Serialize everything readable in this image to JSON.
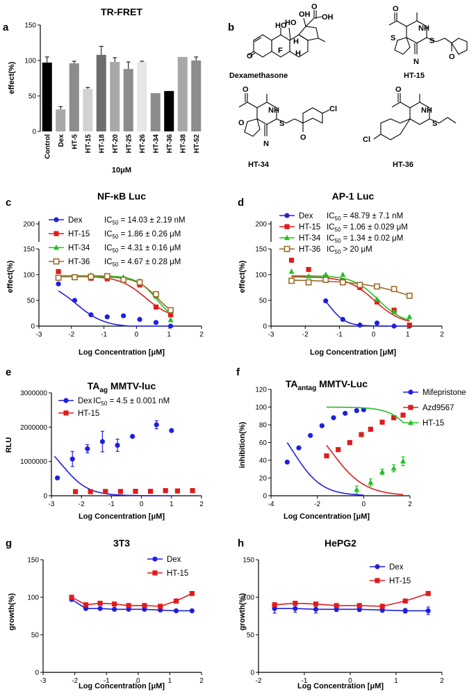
{
  "colors": {
    "blue": "#1f1fe0",
    "red": "#e01b1b",
    "green": "#22c022",
    "brown": "#9c6a2a"
  },
  "panels": {
    "a": {
      "letter": "a",
      "title": "TR-FRET",
      "xlabel": "10μM",
      "ylabel": "effect(%)",
      "yticks": [
        "0",
        "50",
        "100",
        "150"
      ]
    },
    "b": {
      "letter": "b",
      "compounds": [
        {
          "name": "Dexamethasone"
        },
        {
          "name": "HT-15"
        },
        {
          "name": "HT-34"
        },
        {
          "name": "HT-36"
        }
      ],
      "atoms": {
        "O": "O",
        "OH": "OH",
        "HO": "HO",
        "F": "F",
        "H": "H",
        "NH": "NH",
        "S": "S",
        "N": "N",
        "Cl": "Cl"
      }
    },
    "c": {
      "letter": "c",
      "title": "NF-κB Luc",
      "ylabel": "effect(%)",
      "xlabel": "Log Concentration [μM]",
      "yticks": [
        "0",
        "50",
        "100",
        "150",
        "200"
      ],
      "xticks": [
        "-3",
        "-2",
        "-1",
        "0",
        "1",
        "2"
      ],
      "legend": [
        {
          "name": "Dex",
          "ic": "IC",
          "sub": "50",
          "val": " = 14.03 ± 2.19 nM"
        },
        {
          "name": "HT-15",
          "ic": "IC",
          "sub": "50",
          "val": " = 1.86 ± 0.26 μM"
        },
        {
          "name": "HT-34",
          "ic": "IC",
          "sub": "50",
          "val": " = 4.31 ± 0.16 μM"
        },
        {
          "name": "HT-36",
          "ic": "IC",
          "sub": "50",
          "val": " = 4.67 ± 0.28 μM"
        }
      ]
    },
    "d": {
      "letter": "d",
      "title": "AP-1 Luc",
      "ylabel": "effect(%)",
      "xlabel": "Log Concentration [μM]",
      "yticks": [
        "0",
        "50",
        "100",
        "150",
        "200"
      ],
      "xticks": [
        "-3",
        "-2",
        "-1",
        "0",
        "1",
        "2"
      ],
      "legend": [
        {
          "name": "Dex",
          "ic": "IC",
          "sub": "50",
          "val": " = 48.79 ± 7.1 nM"
        },
        {
          "name": "HT-15",
          "ic": "IC",
          "sub": "50",
          "val": " = 1.06 ± 0.029 μM"
        },
        {
          "name": "HT-34",
          "ic": "IC",
          "sub": "50",
          "val": " = 1.34 ± 0.02 μM"
        },
        {
          "name": "HT-36",
          "ic": "IC",
          "sub": "50",
          "val": " > 20 μM"
        }
      ]
    },
    "e": {
      "letter": "e",
      "title_main": "TA",
      "title_sub": "ag",
      "title_rest": " MMTV-luc",
      "ylabel": "RLU",
      "xlabel": "Log Concentration [μM]",
      "yticks": [
        "0",
        "1000000",
        "2000000",
        "3000000"
      ],
      "xticks": [
        "-3",
        "-2",
        "-1",
        "0",
        "1",
        "2"
      ],
      "legend": [
        {
          "name": "Dex",
          "ic": "IC",
          "sub": "50",
          "val": " = 4.5 ± 0.001 nM"
        },
        {
          "name": "HT-15",
          "ic": "",
          "sub": "",
          "val": ""
        }
      ]
    },
    "f": {
      "letter": "f",
      "title_main": "TA",
      "title_sub": "antag",
      "title_rest": " MMTV-Luc",
      "ylabel": "inhibition(%)",
      "xlabel": "Log Concentration [μM]",
      "yticks": [
        "0",
        "20",
        "40",
        "60",
        "80",
        "100",
        "120"
      ],
      "xticks": [
        "-4",
        "-2",
        "0",
        "2"
      ],
      "legend": [
        {
          "name": "Mifepristone"
        },
        {
          "name": "Azd9567"
        },
        {
          "name": "HT-15"
        }
      ]
    },
    "g": {
      "letter": "g",
      "title": "3T3",
      "ylabel": "growth(%)",
      "xlabel": "Log Concentration [μM]",
      "yticks": [
        "0",
        "50",
        "100",
        "150"
      ],
      "xticks": [
        "-3",
        "-2",
        "-1",
        "0",
        "1",
        "2"
      ],
      "legend": [
        {
          "name": "Dex"
        },
        {
          "name": "HT-15"
        }
      ]
    },
    "h": {
      "letter": "h",
      "title": "HePG2",
      "ylabel": "growth(%)",
      "xlabel": "Log Concentration [μM]",
      "yticks": [
        "0",
        "50",
        "100",
        "150"
      ],
      "xticks": [
        "-2",
        "-1",
        "0",
        "1",
        "2"
      ],
      "legend": [
        {
          "name": "Dex"
        },
        {
          "name": "HT-15"
        }
      ]
    }
  },
  "chart_data": [
    {
      "panel": "a",
      "type": "bar",
      "title": "TR-FRET",
      "xlabel": "10μM",
      "ylabel": "effect(%)",
      "ylim": [
        0,
        150
      ],
      "categories": [
        "Control",
        "Dex",
        "HT-5",
        "HT-15",
        "HT-18",
        "HT-20",
        "HT-25",
        "HT-26",
        "HT-34",
        "HT-36",
        "HT-38",
        "HT-52"
      ],
      "values": [
        97,
        31,
        96,
        60,
        108,
        98,
        88,
        98,
        54,
        57,
        105,
        100
      ],
      "errors": [
        8,
        4,
        3,
        2,
        12,
        6,
        10,
        1,
        0,
        0,
        0,
        5
      ],
      "bar_colors": [
        "#000000",
        "#a8a8a8",
        "#8c8c8c",
        "#d2d2d2",
        "#6e6e6e",
        "#a8a8a8",
        "#8c8c8c",
        "#e6e6e6",
        "#8c8c8c",
        "#000000",
        "#a8a8a8",
        "#8c8c8c"
      ]
    },
    {
      "panel": "c",
      "type": "scatter",
      "title": "NF-κB Luc",
      "xlabel": "Log Concentration [μM]",
      "ylabel": "effect(%)",
      "xlim": [
        -3,
        2
      ],
      "ylim": [
        0,
        200
      ],
      "y_axis_break": [
        150,
        180
      ],
      "series": [
        {
          "name": "Dex",
          "color": "#1f1fe0",
          "marker": "circle",
          "x": [
            -2.4,
            -1.9,
            -1.4,
            -0.9,
            -0.4,
            0.1,
            0.6,
            1.05
          ],
          "y": [
            82,
            50,
            22,
            18,
            20,
            13,
            7,
            0
          ],
          "fit": {
            "top": 88,
            "bottom": -2,
            "logic50": -1.85,
            "hill": 1
          }
        },
        {
          "name": "HT-15",
          "color": "#e01b1b",
          "marker": "square",
          "x": [
            -2.4,
            -1.9,
            -1.4,
            -0.9,
            -0.4,
            0.1,
            0.6,
            1.05
          ],
          "y": [
            106,
            95,
            93,
            92,
            90,
            80,
            37,
            22
          ],
          "fit": {
            "top": 97,
            "bottom": 14,
            "logic50": 0.27,
            "hill": 1.1
          }
        },
        {
          "name": "HT-34",
          "color": "#22c022",
          "marker": "triangle",
          "x": [
            -2.4,
            -1.9,
            -1.4,
            -0.9,
            -0.4,
            0.1,
            0.6,
            1.05
          ],
          "y": [
            94,
            95,
            99,
            98,
            95,
            88,
            58,
            12
          ],
          "fit": {
            "top": 98,
            "bottom": 5,
            "logic50": 0.63,
            "hill": 1.4
          }
        },
        {
          "name": "HT-36",
          "color": "#9c6a2a",
          "marker": "open-square",
          "x": [
            -2.4,
            -1.9,
            -1.4,
            -0.9,
            -0.4,
            0.1,
            0.6,
            1.05
          ],
          "y": [
            94,
            95,
            96,
            97,
            90,
            85,
            62,
            31
          ],
          "fit": {
            "top": 96,
            "bottom": 10,
            "logic50": 0.67,
            "hill": 1.3
          }
        }
      ]
    },
    {
      "panel": "d",
      "type": "scatter",
      "title": "AP-1 Luc",
      "xlabel": "Log Concentration [μM]",
      "ylabel": "effect(%)",
      "xlim": [
        -3,
        2
      ],
      "ylim": [
        0,
        200
      ],
      "y_axis_break": [
        150,
        180
      ],
      "series": [
        {
          "name": "Dex",
          "color": "#1f1fe0",
          "marker": "circle",
          "x": [
            -1.4,
            -0.9,
            -0.4,
            0.1,
            0.6,
            1.05
          ],
          "y": [
            49,
            13,
            2,
            6,
            0,
            0
          ],
          "fit": {
            "top": 80,
            "bottom": 0,
            "logic50": -1.3,
            "hill": 1.8
          }
        },
        {
          "name": "HT-15",
          "color": "#e01b1b",
          "marker": "square",
          "x": [
            -2.4,
            -1.9,
            -1.4,
            -0.9,
            -0.4,
            0.1,
            0.6,
            1.05
          ],
          "y": [
            128,
            110,
            95,
            88,
            75,
            47,
            31,
            2
          ],
          "fit": {
            "top": 96,
            "bottom": 3,
            "logic50": 0.03,
            "hill": 1.1
          }
        },
        {
          "name": "HT-34",
          "color": "#22c022",
          "marker": "triangle",
          "x": [
            -2.4,
            -1.9,
            -1.4,
            -0.9,
            -0.4,
            0.1,
            0.6,
            1.05
          ],
          "y": [
            106,
            97,
            100,
            100,
            80,
            52,
            28,
            18
          ],
          "fit": {
            "top": 98,
            "bottom": 5,
            "logic50": 0.13,
            "hill": 1.2
          }
        },
        {
          "name": "HT-36",
          "color": "#9c6a2a",
          "marker": "open-square",
          "x": [
            -2.4,
            -1.9,
            -1.4,
            -0.9,
            -0.4,
            0.1,
            0.6,
            1.05
          ],
          "y": [
            88,
            85,
            90,
            85,
            80,
            77,
            72,
            59
          ],
          "fit": {
            "top": 90,
            "bottom": 0,
            "logic50": 1.6,
            "hill": 0.5
          }
        }
      ]
    },
    {
      "panel": "e",
      "type": "scatter",
      "title": "TAag MMTV-luc",
      "xlabel": "Log Concentration [μM]",
      "ylabel": "RLU",
      "xlim": [
        -3,
        2
      ],
      "ylim": [
        0,
        3000000
      ],
      "series": [
        {
          "name": "Dex",
          "color": "#1f1fe0",
          "marker": "circle",
          "x": [
            -2.8,
            -2.3,
            -1.8,
            -1.3,
            -0.8,
            -0.3,
            0.5,
            1.0
          ],
          "y": [
            520000,
            1070000,
            1370000,
            1580000,
            1470000,
            1730000,
            2070000,
            1900000
          ],
          "err": [
            0,
            220000,
            120000,
            300000,
            180000,
            0,
            120000,
            0
          ],
          "fit": {
            "top": 1800000,
            "bottom": 0,
            "logic50": -2.65,
            "hill": 1
          }
        },
        {
          "name": "HT-15",
          "color": "#e01b1b",
          "marker": "square",
          "x": [
            -2.2,
            -1.7,
            -1.2,
            -0.7,
            -0.2,
            0.3,
            0.8,
            1.2,
            1.7
          ],
          "y": [
            120000,
            120000,
            125000,
            125000,
            130000,
            130000,
            150000,
            140000,
            150000
          ]
        }
      ]
    },
    {
      "panel": "f",
      "type": "scatter",
      "title": "TAantag MMTV-Luc",
      "xlabel": "Log Concentration [μM]",
      "ylabel": "inhibition(%)",
      "xlim": [
        -4,
        2
      ],
      "ylim": [
        0,
        120
      ],
      "series": [
        {
          "name": "Mifepristone",
          "color": "#1f1fe0",
          "marker": "circle",
          "x": [
            -3.3,
            -2.8,
            -2.3,
            -1.8,
            -1.3,
            -0.8,
            -0.3,
            0.0
          ],
          "y": [
            38,
            54,
            68,
            79,
            88,
            93,
            96,
            97
          ],
          "fit": {
            "top": 100,
            "bottom": 0,
            "logic50": -3.05,
            "hill": 0.7
          }
        },
        {
          "name": "Azd9567",
          "color": "#e01b1b",
          "marker": "square",
          "x": [
            -1.6,
            -1.1,
            -0.6,
            -0.1,
            0.3,
            0.8,
            1.3,
            1.7
          ],
          "y": [
            45,
            52,
            60,
            69,
            75,
            83,
            88,
            91
          ],
          "fit": {
            "top": 100,
            "bottom": 0,
            "logic50": -1.4,
            "hill": 0.6
          }
        },
        {
          "name": "HT-15",
          "color": "#22c022",
          "marker": "triangle",
          "x": [
            -0.3,
            0.3,
            0.8,
            1.3,
            1.7
          ],
          "y": [
            7,
            15,
            27,
            31,
            39
          ],
          "err": [
            4,
            4,
            3,
            4,
            5
          ],
          "fit": {
            "top": 100,
            "bottom": 0,
            "logic50": 2.55,
            "hill": 0.8
          }
        }
      ]
    },
    {
      "panel": "g",
      "type": "line",
      "title": "3T3",
      "xlabel": "Log Concentration [μM]",
      "ylabel": "growth(%)",
      "xlim": [
        -3,
        2
      ],
      "ylim": [
        0,
        150
      ],
      "series": [
        {
          "name": "Dex",
          "color": "#1f1fe0",
          "marker": "circle",
          "x": [
            -2.1,
            -1.65,
            -1.2,
            -0.75,
            -0.3,
            0.2,
            0.7,
            1.2,
            1.7
          ],
          "y": [
            97,
            85,
            85,
            84,
            84,
            84,
            83,
            82,
            82
          ]
        },
        {
          "name": "HT-15",
          "color": "#e01b1b",
          "marker": "square",
          "x": [
            -2.1,
            -1.65,
            -1.2,
            -0.75,
            -0.3,
            0.2,
            0.7,
            1.2,
            1.7
          ],
          "y": [
            100,
            90,
            92,
            91,
            89,
            89,
            88,
            95,
            105
          ]
        }
      ]
    },
    {
      "panel": "h",
      "type": "line",
      "title": "HePG2",
      "xlabel": "Log Concentration [μM]",
      "ylabel": "growth(%)",
      "xlim": [
        -2,
        2
      ],
      "ylim": [
        0,
        150
      ],
      "series": [
        {
          "name": "Dex",
          "color": "#1f1fe0",
          "marker": "circle",
          "x": [
            -1.65,
            -1.2,
            -0.75,
            -0.3,
            0.2,
            0.7,
            1.2,
            1.7
          ],
          "y": [
            85,
            85,
            84,
            84,
            84,
            83,
            82,
            82
          ],
          "err": [
            6,
            5,
            5,
            3,
            3,
            3,
            3,
            5
          ]
        },
        {
          "name": "HT-15",
          "color": "#e01b1b",
          "marker": "square",
          "x": [
            -1.65,
            -1.2,
            -0.75,
            -0.3,
            0.2,
            0.7,
            1.2,
            1.7
          ],
          "y": [
            90,
            92,
            91,
            89,
            89,
            88,
            95,
            105
          ]
        }
      ]
    }
  ]
}
